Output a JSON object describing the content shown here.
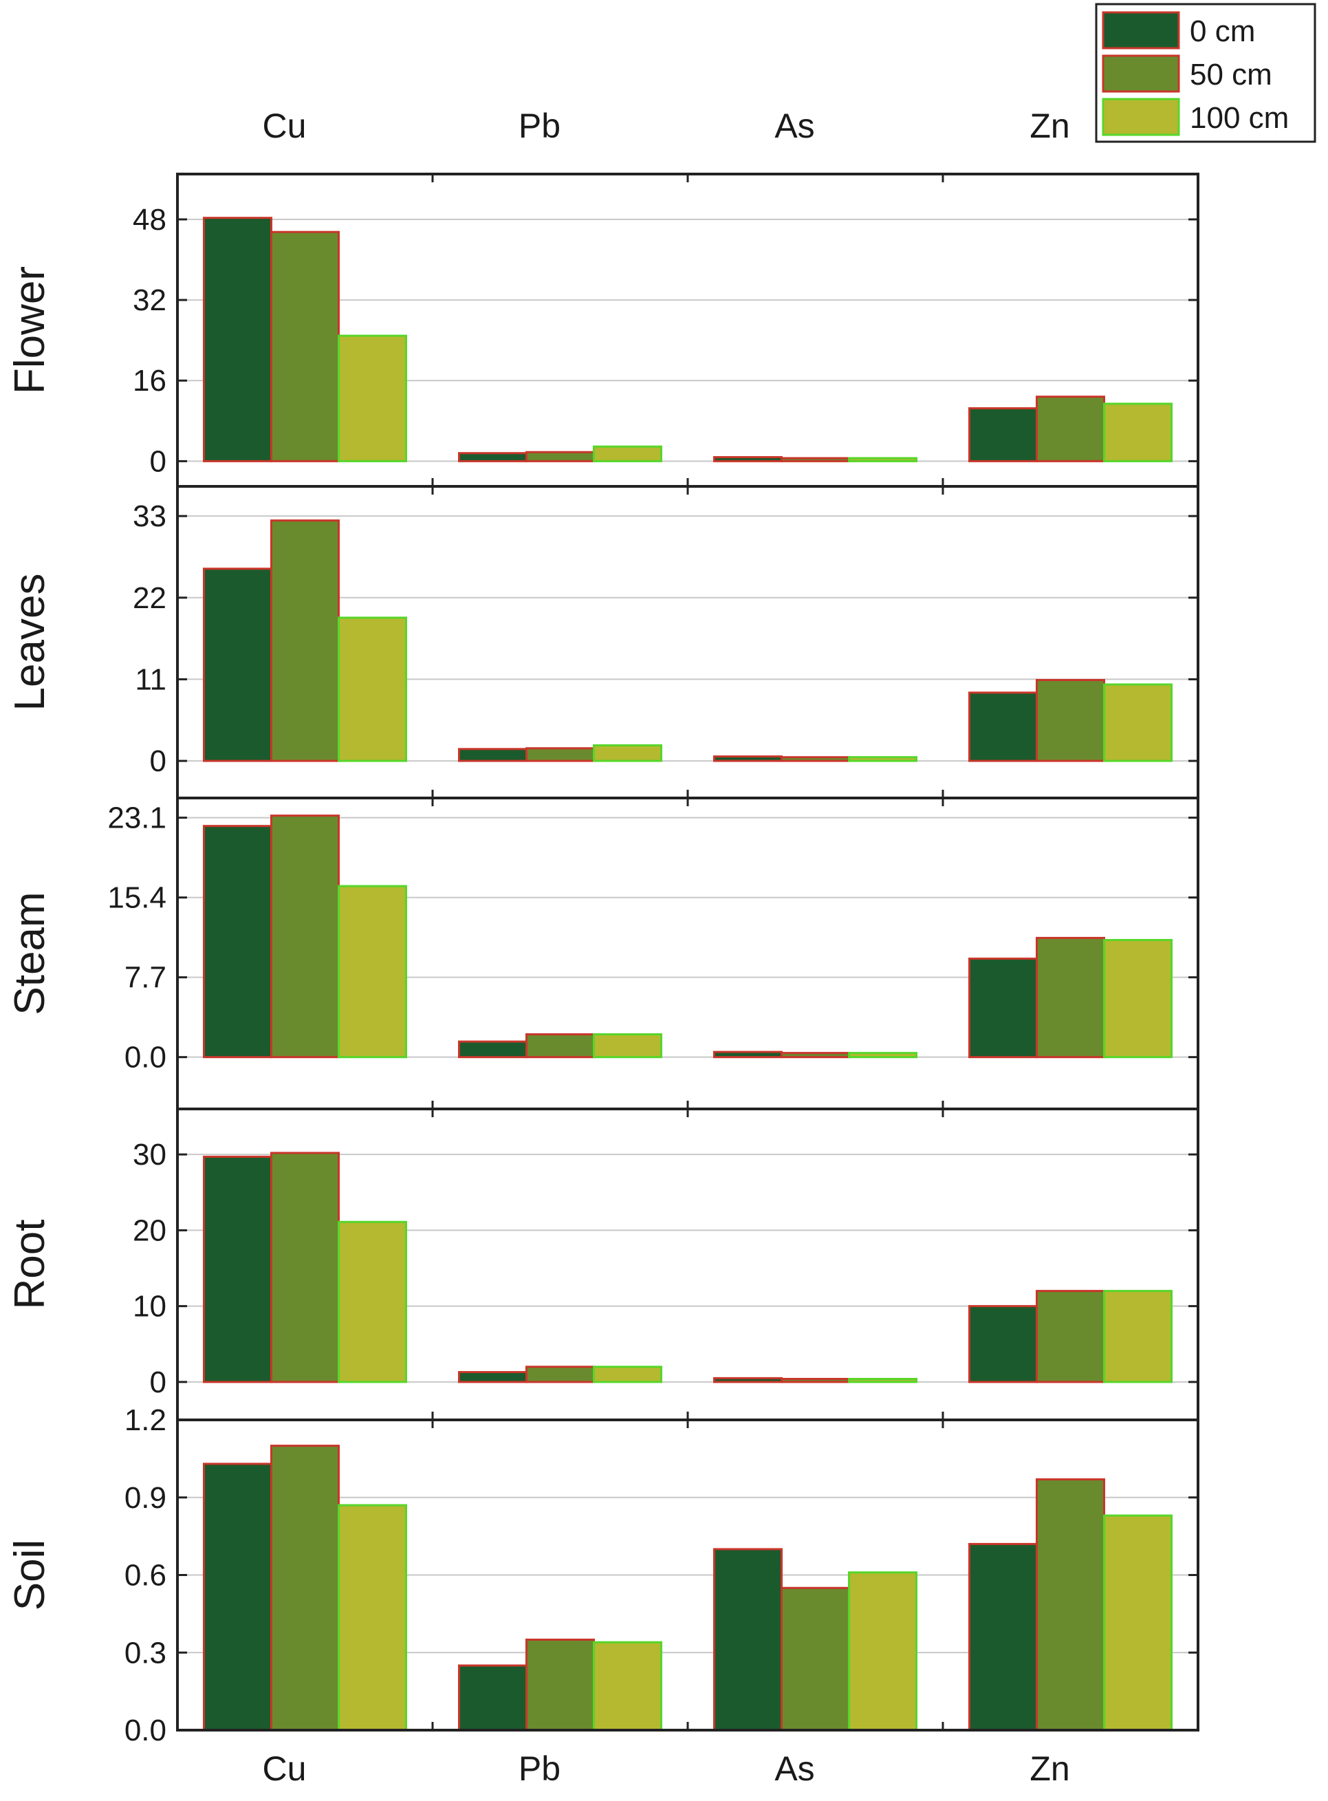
{
  "chart_data": {
    "type": "bar",
    "categories": [
      "Cu",
      "Pb",
      "As",
      "Zn"
    ],
    "legend": {
      "placement": "top-right",
      "entries": [
        "0 cm",
        "50 cm",
        "100 cm"
      ]
    },
    "series_colors": {
      "fill": [
        "#1b5a2c",
        "#6a8a2e",
        "#b5b92f"
      ],
      "edge": [
        "#c9362a",
        "#c9362a",
        "#56d62a"
      ]
    },
    "panels": [
      {
        "name": "Flower",
        "ylim": [
          -5,
          57
        ],
        "yticks": [
          0,
          16,
          32,
          48
        ],
        "ytick_labels": [
          "0",
          "16",
          "32",
          "48"
        ],
        "series": [
          {
            "name": "0 cm",
            "values": [
              48.3,
              1.6,
              0.8,
              10.5
            ]
          },
          {
            "name": "50 cm",
            "values": [
              45.5,
              1.8,
              0.6,
              12.8
            ]
          },
          {
            "name": "100 cm",
            "values": [
              24.9,
              2.9,
              0.6,
              11.4
            ]
          }
        ]
      },
      {
        "name": "Leaves",
        "ylim": [
          -5,
          37
        ],
        "yticks": [
          0,
          11,
          22,
          33
        ],
        "ytick_labels": [
          "0",
          "11",
          "22",
          "33"
        ],
        "series": [
          {
            "name": "0 cm",
            "values": [
              25.9,
              1.6,
              0.6,
              9.2
            ]
          },
          {
            "name": "50 cm",
            "values": [
              32.4,
              1.7,
              0.5,
              10.9
            ]
          },
          {
            "name": "100 cm",
            "values": [
              19.3,
              2.1,
              0.5,
              10.3
            ]
          }
        ]
      },
      {
        "name": "Steam",
        "ylim": [
          -5,
          25
        ],
        "yticks": [
          0,
          7.7,
          15.4,
          23.1
        ],
        "ytick_labels": [
          "0.0",
          "7.7",
          "15.4",
          "23.1"
        ],
        "series": [
          {
            "name": "0 cm",
            "values": [
              22.3,
              1.5,
              0.5,
              9.5
            ]
          },
          {
            "name": "50 cm",
            "values": [
              23.3,
              2.2,
              0.4,
              11.5
            ]
          },
          {
            "name": "100 cm",
            "values": [
              16.5,
              2.2,
              0.4,
              11.3
            ]
          }
        ]
      },
      {
        "name": "Root",
        "ylim": [
          -5,
          36
        ],
        "yticks": [
          0,
          10,
          20,
          30
        ],
        "ytick_labels": [
          "0",
          "10",
          "20",
          "30"
        ],
        "series": [
          {
            "name": "0 cm",
            "values": [
              29.7,
              1.3,
              0.5,
              10.0
            ]
          },
          {
            "name": "50 cm",
            "values": [
              30.2,
              2.0,
              0.4,
              12.0
            ]
          },
          {
            "name": "100 cm",
            "values": [
              21.1,
              2.0,
              0.4,
              12.0
            ]
          }
        ]
      },
      {
        "name": "Soil",
        "ylim": [
          0.0,
          1.2
        ],
        "yticks": [
          0.0,
          0.3,
          0.6,
          0.9,
          1.2
        ],
        "ytick_labels": [
          "0.0",
          "0.3",
          "0.6",
          "0.9",
          "1.2"
        ],
        "series": [
          {
            "name": "0 cm",
            "values": [
              1.03,
              0.25,
              0.7,
              0.72
            ]
          },
          {
            "name": "50 cm",
            "values": [
              1.1,
              0.35,
              0.55,
              0.97
            ]
          },
          {
            "name": "100 cm",
            "values": [
              0.87,
              0.34,
              0.61,
              0.83
            ]
          }
        ]
      }
    ]
  }
}
